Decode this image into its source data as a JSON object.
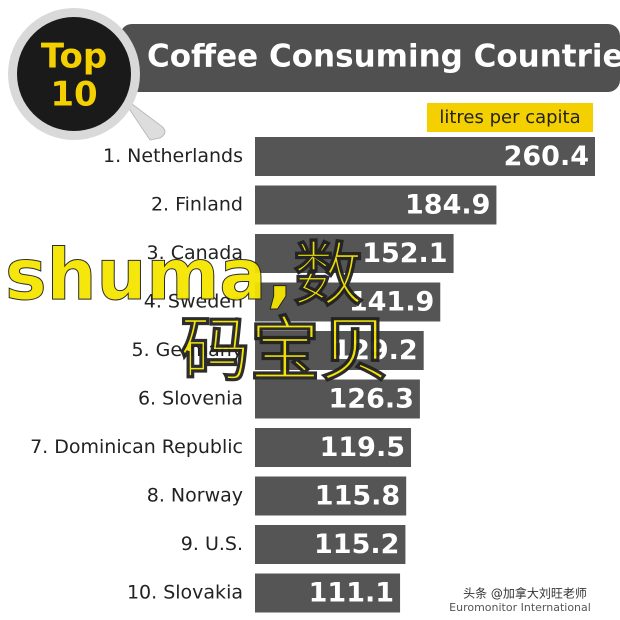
{
  "chart_data": {
    "type": "bar",
    "orientation": "horizontal",
    "badge": {
      "line1": "Top",
      "line2": "10"
    },
    "title": "Coffee Consuming Countries",
    "unit_label": "litres per capita",
    "categories": [
      "1. Netherlands",
      "2. Finland",
      "3. Canada",
      "4. Sweden",
      "5. Germany",
      "6. Slovenia",
      "7. Dominican Republic",
      "8. Norway",
      "9. U.S.",
      "10. Slovakia"
    ],
    "values": [
      260.4,
      184.9,
      152.1,
      141.9,
      129.2,
      126.3,
      119.5,
      115.8,
      115.2,
      111.1
    ],
    "color": "#555555",
    "source": "Euromonitor International",
    "watermark": {
      "main": "shuma,数",
      "second": "码宝贝",
      "credit": "头条 @加拿大刘旺老师"
    }
  }
}
